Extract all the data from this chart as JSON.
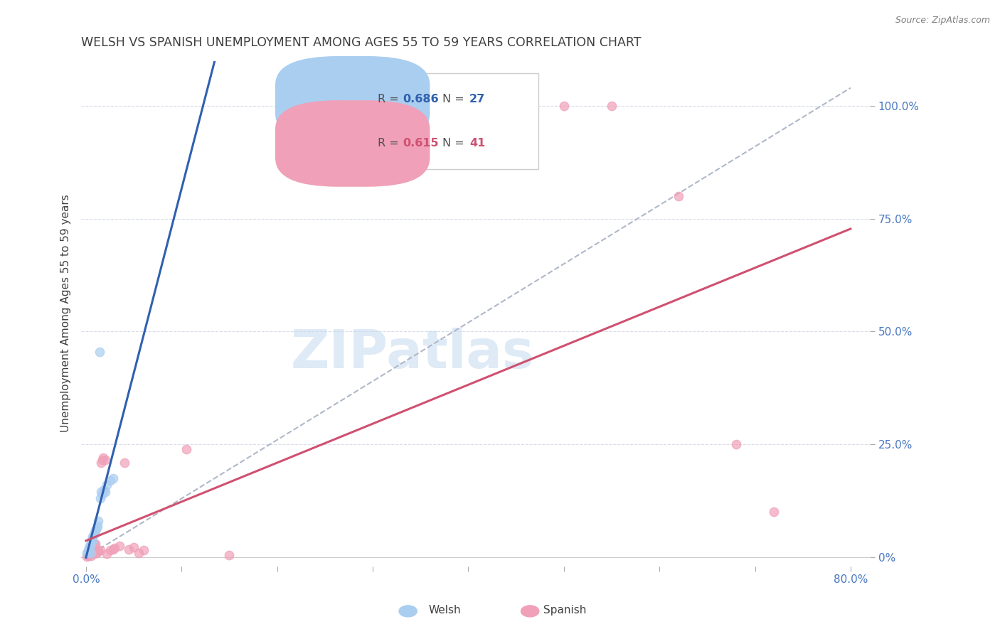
{
  "title": "WELSH VS SPANISH UNEMPLOYMENT AMONG AGES 55 TO 59 YEARS CORRELATION CHART",
  "source": "Source: ZipAtlas.com",
  "ylabel": "Unemployment Among Ages 55 to 59 years",
  "welsh_R": 0.686,
  "welsh_N": 27,
  "spanish_R": 0.615,
  "spanish_N": 41,
  "welsh_color": "#aacef0",
  "spanish_color": "#f0a0b8",
  "welsh_line_color": "#3060b0",
  "spanish_line_color": "#d05070",
  "ref_line_color": "#b0b8c8",
  "grid_color": "#d8dce8",
  "title_color": "#404040",
  "axis_label_color": "#404040",
  "tick_color": "#4878c0",
  "background_color": "#ffffff",
  "watermark": "ZIPatlas",
  "watermark_color": "#c8dcf0",
  "marker_size": 80,
  "xlim_min": -0.005,
  "xlim_max": 0.82,
  "ylim_min": -0.02,
  "ylim_max": 1.1,
  "yticks": [
    0.0,
    0.25,
    0.5,
    0.75,
    1.0
  ],
  "ytick_labels": [
    "0%",
    "25.0%",
    "50.0%",
    "75.0%",
    "100.0%"
  ],
  "xticks": [
    0.0,
    0.1,
    0.2,
    0.3,
    0.4,
    0.5,
    0.6,
    0.7,
    0.8
  ],
  "xtick_labels": [
    "0.0%",
    "",
    "",
    "",
    "",
    "",
    "",
    "",
    "80.0%"
  ],
  "welsh_x": [
    0.001,
    0.002,
    0.002,
    0.003,
    0.003,
    0.004,
    0.004,
    0.005,
    0.005,
    0.006,
    0.006,
    0.007,
    0.008,
    0.009,
    0.01,
    0.011,
    0.012,
    0.013,
    0.015,
    0.017,
    0.019,
    0.022,
    0.025,
    0.028,
    0.014,
    0.016,
    0.02
  ],
  "welsh_y": [
    0.01,
    0.012,
    0.015,
    0.017,
    0.02,
    0.022,
    0.025,
    0.01,
    0.03,
    0.035,
    0.04,
    0.045,
    0.05,
    0.055,
    0.06,
    0.065,
    0.07,
    0.08,
    0.13,
    0.14,
    0.15,
    0.16,
    0.17,
    0.175,
    0.455,
    0.145,
    0.145
  ],
  "spanish_x": [
    0.001,
    0.002,
    0.002,
    0.003,
    0.003,
    0.003,
    0.004,
    0.004,
    0.005,
    0.005,
    0.006,
    0.007,
    0.007,
    0.008,
    0.009,
    0.01,
    0.011,
    0.012,
    0.013,
    0.015,
    0.016,
    0.017,
    0.018,
    0.02,
    0.022,
    0.025,
    0.028,
    0.03,
    0.035,
    0.04,
    0.045,
    0.05,
    0.055,
    0.06,
    0.105,
    0.15,
    0.5,
    0.55,
    0.62,
    0.68,
    0.72
  ],
  "spanish_y": [
    0.002,
    0.003,
    0.005,
    0.007,
    0.008,
    0.01,
    0.012,
    0.015,
    0.003,
    0.018,
    0.02,
    0.022,
    0.025,
    0.008,
    0.028,
    0.03,
    0.01,
    0.012,
    0.014,
    0.015,
    0.21,
    0.215,
    0.22,
    0.215,
    0.008,
    0.015,
    0.018,
    0.02,
    0.025,
    0.21,
    0.018,
    0.022,
    0.01,
    0.015,
    0.24,
    0.005,
    1.0,
    1.0,
    0.8,
    0.25,
    0.1
  ]
}
